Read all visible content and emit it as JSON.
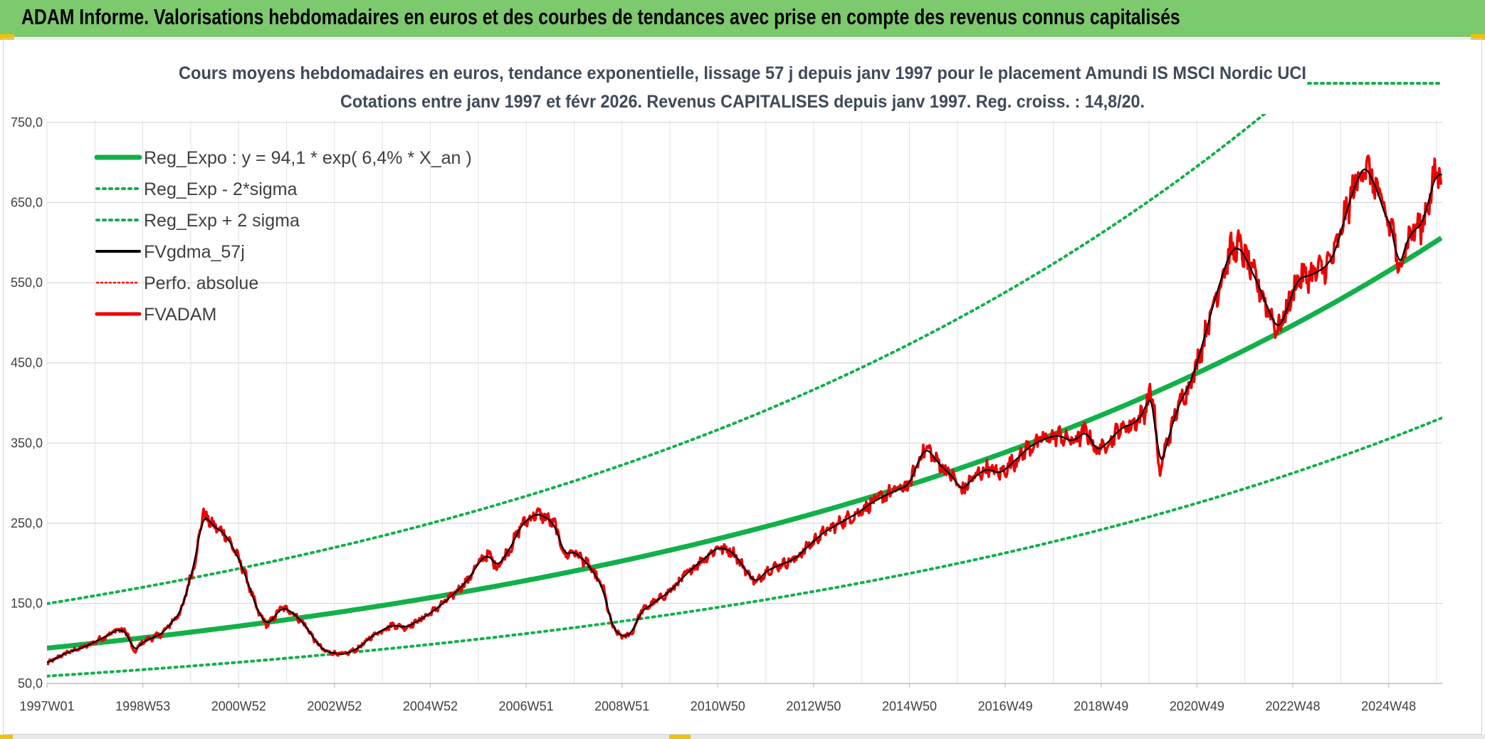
{
  "banner": {
    "title": "ADAM Informe. Valorisations hebdomadaires en euros et des courbes de tendances avec prise en compte des revenus connus capitalisés"
  },
  "chart_data": {
    "type": "line",
    "title_line1": "Cours moyens hebdomadaires en euros, tendance exponentielle, lissage 57 j depuis janv 1997 pour le placement Amundi IS MSCI Nordic UCI",
    "title_line2": "Cotations entre janv 1997 et févr 2026. Revenus CAPITALISES depuis janv 1997. Reg. croiss. : 14,8/20.",
    "ylim": [
      50,
      770
    ],
    "y_ticks": [
      "50,0",
      "150,0",
      "250,0",
      "350,0",
      "450,0",
      "550,0",
      "650,0",
      "750,0"
    ],
    "y_tick_values": [
      50,
      150,
      250,
      350,
      450,
      550,
      650,
      750
    ],
    "x_range": [
      1997.0,
      2026.12
    ],
    "x_ticks": [
      "1997W01",
      "1998W53",
      "2000W52",
      "2002W52",
      "2004W52",
      "2006W51",
      "2008W51",
      "2010W50",
      "2012W50",
      "2014W50",
      "2016W49",
      "2018W49",
      "2020W49",
      "2022W48",
      "2024W48"
    ],
    "x_tick_values": [
      1997.0,
      1999.0,
      2001.0,
      2003.0,
      2005.0,
      2007.0,
      2009.0,
      2011.0,
      2013.0,
      2015.0,
      2017.0,
      2019.0,
      2021.0,
      2023.0,
      2025.0
    ],
    "grid": true,
    "legend_position": "top-left",
    "regression": {
      "a": 94.1,
      "rate": 0.064,
      "sigma_factor": 1.59
    },
    "series": [
      {
        "name": "Reg_Expo : y = 94,1 * exp( 6,4% *  X_an )",
        "color": "#12b04a",
        "style": "solid-thick"
      },
      {
        "name": "Reg_Exp - 2*sigma",
        "color": "#12b04a",
        "style": "dotted"
      },
      {
        "name": "Reg_Exp + 2 sigma",
        "color": "#12b04a",
        "style": "dotted"
      },
      {
        "name": "FVgdma_57j",
        "color": "#000000",
        "style": "solid"
      },
      {
        "name": "Perfo. absolue",
        "color": "#ff0000",
        "style": "dotted"
      },
      {
        "name": "FVADAM",
        "color": "#ee0000",
        "style": "solid-thick",
        "points": [
          [
            1997.0,
            75
          ],
          [
            1997.4,
            88
          ],
          [
            1997.8,
            96
          ],
          [
            1998.2,
            108
          ],
          [
            1998.5,
            118
          ],
          [
            1998.7,
            112
          ],
          [
            1998.8,
            88
          ],
          [
            1999.0,
            102
          ],
          [
            1999.4,
            112
          ],
          [
            1999.8,
            140
          ],
          [
            2000.1,
            205
          ],
          [
            2000.25,
            262
          ],
          [
            2000.5,
            245
          ],
          [
            2000.7,
            238
          ],
          [
            2000.9,
            218
          ],
          [
            2001.1,
            192
          ],
          [
            2001.4,
            140
          ],
          [
            2001.6,
            122
          ],
          [
            2001.9,
            145
          ],
          [
            2002.1,
            140
          ],
          [
            2002.4,
            122
          ],
          [
            2002.6,
            103
          ],
          [
            2002.8,
            90
          ],
          [
            2003.0,
            88
          ],
          [
            2003.2,
            86
          ],
          [
            2003.5,
            94
          ],
          [
            2003.8,
            110
          ],
          [
            2004.2,
            123
          ],
          [
            2004.5,
            120
          ],
          [
            2004.8,
            130
          ],
          [
            2005.1,
            142
          ],
          [
            2005.5,
            162
          ],
          [
            2005.8,
            180
          ],
          [
            2006.0,
            200
          ],
          [
            2006.2,
            212
          ],
          [
            2006.4,
            195
          ],
          [
            2006.7,
            222
          ],
          [
            2006.9,
            248
          ],
          [
            2007.2,
            262
          ],
          [
            2007.4,
            258
          ],
          [
            2007.6,
            248
          ],
          [
            2007.8,
            210
          ],
          [
            2008.0,
            215
          ],
          [
            2008.3,
            198
          ],
          [
            2008.6,
            170
          ],
          [
            2008.8,
            120
          ],
          [
            2009.0,
            108
          ],
          [
            2009.2,
            112
          ],
          [
            2009.4,
            140
          ],
          [
            2009.7,
            152
          ],
          [
            2010.0,
            165
          ],
          [
            2010.4,
            190
          ],
          [
            2010.7,
            205
          ],
          [
            2011.0,
            220
          ],
          [
            2011.3,
            215
          ],
          [
            2011.6,
            190
          ],
          [
            2011.8,
            175
          ],
          [
            2012.0,
            190
          ],
          [
            2012.3,
            198
          ],
          [
            2012.6,
            205
          ],
          [
            2012.9,
            222
          ],
          [
            2013.2,
            238
          ],
          [
            2013.6,
            252
          ],
          [
            2013.9,
            262
          ],
          [
            2014.2,
            275
          ],
          [
            2014.5,
            285
          ],
          [
            2014.8,
            293
          ],
          [
            2015.0,
            298
          ],
          [
            2015.2,
            330
          ],
          [
            2015.35,
            345
          ],
          [
            2015.6,
            325
          ],
          [
            2015.9,
            308
          ],
          [
            2016.1,
            290
          ],
          [
            2016.3,
            305
          ],
          [
            2016.6,
            318
          ],
          [
            2016.9,
            312
          ],
          [
            2017.2,
            328
          ],
          [
            2017.5,
            345
          ],
          [
            2017.8,
            355
          ],
          [
            2018.1,
            360
          ],
          [
            2018.4,
            352
          ],
          [
            2018.7,
            365
          ],
          [
            2018.9,
            340
          ],
          [
            2019.1,
            348
          ],
          [
            2019.4,
            368
          ],
          [
            2019.7,
            375
          ],
          [
            2019.9,
            388
          ],
          [
            2020.0,
            410
          ],
          [
            2020.1,
            405
          ],
          [
            2020.2,
            310
          ],
          [
            2020.35,
            345
          ],
          [
            2020.6,
            395
          ],
          [
            2020.9,
            430
          ],
          [
            2021.1,
            470
          ],
          [
            2021.4,
            535
          ],
          [
            2021.7,
            590
          ],
          [
            2021.9,
            595
          ],
          [
            2022.1,
            570
          ],
          [
            2022.3,
            545
          ],
          [
            2022.5,
            515
          ],
          [
            2022.7,
            490
          ],
          [
            2022.9,
            520
          ],
          [
            2023.1,
            555
          ],
          [
            2023.4,
            560
          ],
          [
            2023.7,
            570
          ],
          [
            2023.9,
            590
          ],
          [
            2024.1,
            635
          ],
          [
            2024.3,
            672
          ],
          [
            2024.5,
            698
          ],
          [
            2024.65,
            680
          ],
          [
            2024.8,
            660
          ],
          [
            2024.95,
            628
          ],
          [
            2025.1,
            620
          ],
          [
            2025.2,
            555
          ],
          [
            2025.3,
            590
          ],
          [
            2025.5,
            615
          ],
          [
            2025.7,
            622
          ],
          [
            2025.85,
            655
          ],
          [
            2026.0,
            690
          ],
          [
            2026.12,
            680
          ]
        ]
      }
    ]
  }
}
